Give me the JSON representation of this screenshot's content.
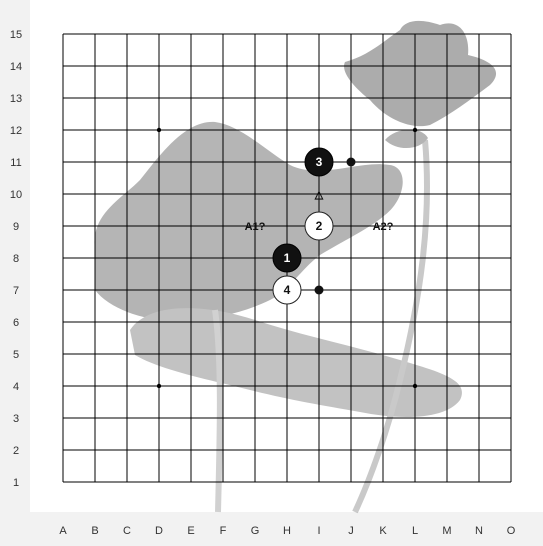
{
  "board": {
    "size_x": 15,
    "size_y": 15,
    "col_labels": [
      "A",
      "B",
      "C",
      "D",
      "E",
      "F",
      "G",
      "H",
      "I",
      "J",
      "K",
      "L",
      "M",
      "N",
      "O"
    ],
    "row_labels": [
      "1",
      "2",
      "3",
      "4",
      "5",
      "6",
      "7",
      "8",
      "9",
      "10",
      "11",
      "12",
      "13",
      "14",
      "15"
    ],
    "star_points": [
      {
        "col": "D",
        "row": 4
      },
      {
        "col": "L",
        "row": 4
      },
      {
        "col": "D",
        "row": 12
      },
      {
        "col": "L",
        "row": 12
      }
    ],
    "colors": {
      "grid": "#000000",
      "black_stone": "#111111",
      "white_stone": "#ffffff",
      "background": "#ffffff",
      "panel": "#f2f2f2"
    }
  },
  "stones": [
    {
      "col": "H",
      "row": 8,
      "color": "black",
      "number": "1"
    },
    {
      "col": "I",
      "row": 9,
      "color": "white",
      "number": "2"
    },
    {
      "col": "I",
      "row": 11,
      "color": "black",
      "number": "3"
    },
    {
      "col": "H",
      "row": 7,
      "color": "white",
      "number": "4"
    }
  ],
  "marks": [
    {
      "col": "J",
      "row": 11,
      "color": "black"
    },
    {
      "col": "I",
      "row": 7,
      "color": "black"
    }
  ],
  "annotations": [
    {
      "col": "G",
      "row": 9,
      "text": "A1?"
    },
    {
      "col": "K",
      "row": 9,
      "text": "A2?"
    },
    {
      "col": "I",
      "row": 10,
      "text": "△"
    }
  ]
}
